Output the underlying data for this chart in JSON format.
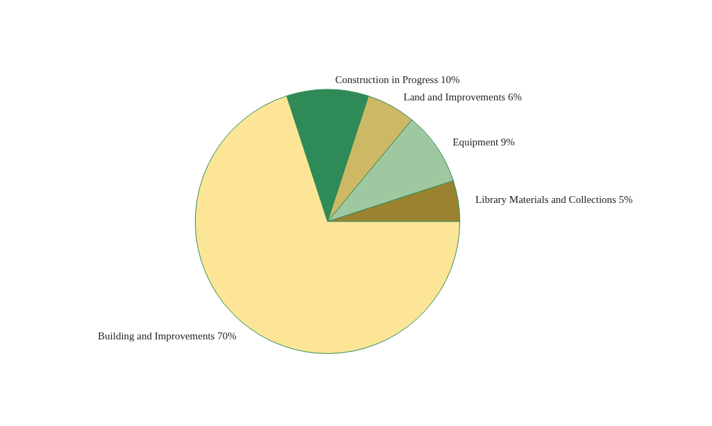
{
  "chart_data": {
    "type": "pie",
    "categories": [
      "Library Materials and Collections",
      "Equipment",
      "Land and Improvements",
      "Construction in Progress",
      "Building and Improvements"
    ],
    "values": [
      5,
      9,
      6,
      10,
      70
    ],
    "value_labels": [
      "5%",
      "9%",
      "6%",
      "10%",
      "70%"
    ],
    "colors": [
      "#9a8230",
      "#a0c8a0",
      "#cdb865",
      "#2e8b57",
      "#fce597"
    ],
    "legend": false
  }
}
